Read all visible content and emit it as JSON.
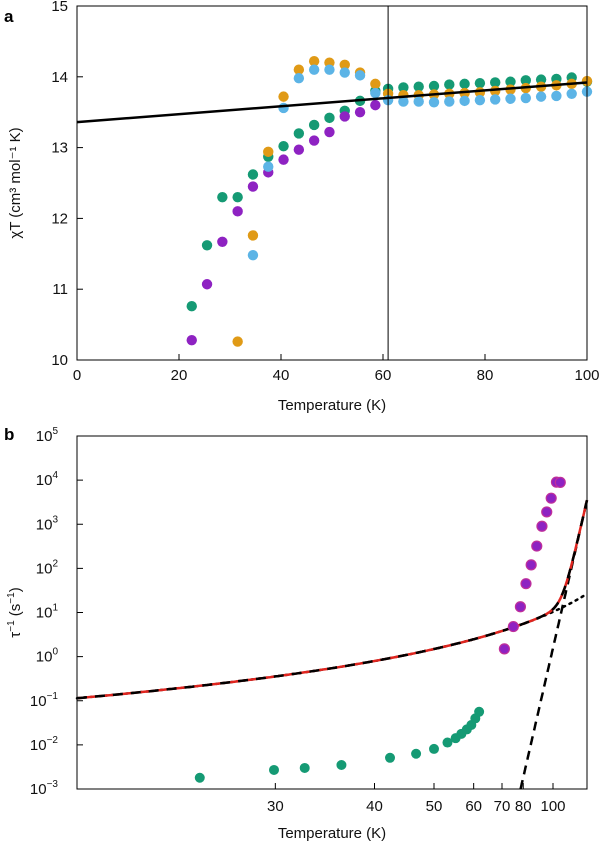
{
  "chart_data": [
    {
      "panel": "a",
      "type": "scatter",
      "xlabel": "Temperature (K)",
      "ylabel": "χT (cm³ mol⁻¹ K)",
      "xlim": [
        0,
        100
      ],
      "ylim": [
        10,
        15
      ],
      "xticks": [
        0,
        20,
        40,
        60,
        80,
        100
      ],
      "yticks": [
        10,
        11,
        12,
        13,
        14,
        15
      ],
      "vline_x": 61,
      "fit_line": {
        "name": "linear-fit",
        "color": "#000000",
        "x": [
          0,
          100
        ],
        "y": [
          13.36,
          13.92
        ]
      },
      "series": [
        {
          "name": "green",
          "color": "#159a74",
          "x": [
            22.5,
            25.5,
            28.5,
            31.5,
            34.5,
            37.5,
            40.5,
            43.5,
            46.5,
            49.5,
            52.5,
            55.5,
            58.5,
            61,
            64,
            67,
            70,
            73,
            76,
            79,
            82,
            85,
            88,
            91,
            94,
            97,
            100
          ],
          "y": [
            10.76,
            11.62,
            12.3,
            12.3,
            12.62,
            12.87,
            13.02,
            13.2,
            13.32,
            13.42,
            13.52,
            13.66,
            13.8,
            13.83,
            13.85,
            13.86,
            13.87,
            13.89,
            13.9,
            13.91,
            13.92,
            13.93,
            13.95,
            13.96,
            13.97,
            13.99,
            13.93
          ]
        },
        {
          "name": "purple",
          "color": "#8e22c2",
          "x": [
            22.5,
            25.5,
            28.5,
            31.5,
            34.5,
            37.5,
            40.5,
            43.5,
            46.5,
            49.5,
            52.5,
            55.5,
            58.5
          ],
          "y": [
            10.28,
            11.07,
            11.67,
            12.1,
            12.45,
            12.65,
            12.83,
            12.97,
            13.1,
            13.22,
            13.44,
            13.5,
            13.6
          ]
        },
        {
          "name": "orange",
          "color": "#e09a16",
          "x": [
            31.5,
            34.5,
            37.5,
            40.5,
            43.5,
            46.5,
            49.5,
            52.5,
            55.5,
            58.5,
            61,
            64,
            67,
            70,
            73,
            76,
            79,
            82,
            85,
            88,
            91,
            94,
            97,
            100
          ],
          "y": [
            10.26,
            11.76,
            12.94,
            13.72,
            14.1,
            14.22,
            14.2,
            14.17,
            14.06,
            13.9,
            13.76,
            13.74,
            13.74,
            13.75,
            13.76,
            13.77,
            13.78,
            13.8,
            13.82,
            13.84,
            13.86,
            13.88,
            13.9,
            13.94
          ]
        },
        {
          "name": "blue",
          "color": "#5cb4e6",
          "x": [
            34.5,
            37.5,
            40.5,
            43.5,
            46.5,
            49.5,
            52.5,
            55.5,
            58.5,
            61,
            64,
            67,
            70,
            73,
            76,
            79,
            82,
            85,
            88,
            91,
            94,
            97,
            100
          ],
          "y": [
            11.48,
            12.73,
            13.56,
            13.98,
            14.1,
            14.1,
            14.06,
            14.02,
            13.77,
            13.67,
            13.65,
            13.65,
            13.64,
            13.65,
            13.66,
            13.67,
            13.68,
            13.69,
            13.7,
            13.72,
            13.73,
            13.76,
            13.79
          ]
        }
      ]
    },
    {
      "panel": "b",
      "type": "scatter",
      "xscale": "inverse-temperature",
      "yscale": "log",
      "xlabel": "Temperature (K)",
      "ylabel_base": "τ",
      "ylabel_exp": "−1",
      "ylabel_units": " (s",
      "ylabel_units_exp": "−1",
      "ylabel_close": ")",
      "ylabel": "τ⁻¹ (s⁻¹)",
      "xlim": [
        20,
        140
      ],
      "ylim_log10": [
        -3,
        5
      ],
      "xtick_values": [
        30,
        40,
        50,
        60,
        70,
        80,
        100
      ],
      "xtick_labels": [
        "30",
        "40",
        "50",
        "60",
        "70",
        "80",
        "100"
      ],
      "ytick_exps": [
        -3,
        -2,
        -1,
        0,
        1,
        2,
        3,
        4,
        5
      ],
      "ytick_labels": [
        "10",
        "10",
        "10",
        "10",
        "10",
        "10",
        "10",
        "10",
        "10"
      ],
      "ytick_label_exps": [
        "−3",
        "−2",
        "−1",
        "0",
        "1",
        "2",
        "3",
        "4",
        "5"
      ],
      "series": [
        {
          "name": "green",
          "color": "#159a74",
          "x": [
            25.2,
            29.9,
            32.4,
            36,
            42.2,
            46.5,
            50,
            53,
            55,
            56.5,
            58,
            59.3,
            60.5,
            61.7
          ],
          "y": [
            0.0018,
            0.0027,
            0.003,
            0.0035,
            0.0051,
            0.0063,
            0.0081,
            0.0113,
            0.0142,
            0.0178,
            0.0224,
            0.0282,
            0.0398,
            0.0562
          ]
        },
        {
          "name": "purple",
          "color": "#8e22c2",
          "x": [
            71,
            75,
            78.5,
            81.5,
            84.5,
            88,
            91.5,
            95,
            98.5,
            103,
            106.5
          ],
          "y": [
            1.5,
            4.8,
            13.5,
            45,
            120,
            320,
            900,
            1900,
            3900,
            9000,
            8900
          ]
        }
      ],
      "fits": [
        {
          "name": "raman-dotted",
          "style": "dotted",
          "A": 2.6e-05,
          "n": 2.8
        },
        {
          "name": "orbach-dashed",
          "style": "dashed",
          "tau0": 1.2e-12,
          "Ueff": 2700
        },
        {
          "name": "total-fit",
          "style": "solid-red-black-dash",
          "color": "#e0251f"
        }
      ]
    }
  ]
}
